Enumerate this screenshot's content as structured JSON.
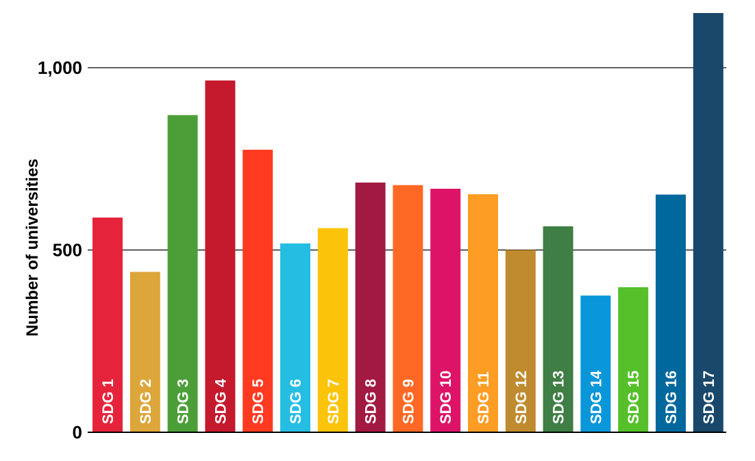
{
  "chart_data": {
    "type": "bar",
    "title": "",
    "xlabel": "",
    "ylabel": "Number of universities",
    "ylim": [
      0,
      1000
    ],
    "yticks": [
      0,
      500,
      1000
    ],
    "ytick_labels": [
      "0",
      "500",
      "1,000"
    ],
    "grid": true,
    "categories": [
      "SDG 1",
      "SDG 2",
      "SDG 3",
      "SDG 4",
      "SDG 5",
      "SDG 6",
      "SDG 7",
      "SDG 8",
      "SDG 9",
      "SDG 10",
      "SDG 11",
      "SDG 12",
      "SDG 13",
      "SDG 14",
      "SDG 15",
      "SDG 16",
      "SDG 17"
    ],
    "values": [
      589,
      440,
      870,
      965,
      775,
      518,
      560,
      685,
      678,
      668,
      653,
      500,
      565,
      375,
      398,
      652,
      1150
    ],
    "colors": [
      "#e5243b",
      "#dda63a",
      "#4c9f38",
      "#c5192d",
      "#ff3a21",
      "#26bde2",
      "#fcc30b",
      "#a21942",
      "#fd6925",
      "#dd1367",
      "#fd9d24",
      "#bf8b2e",
      "#3f7e44",
      "#0a97d9",
      "#56c02b",
      "#00689d",
      "#19486a"
    ]
  }
}
